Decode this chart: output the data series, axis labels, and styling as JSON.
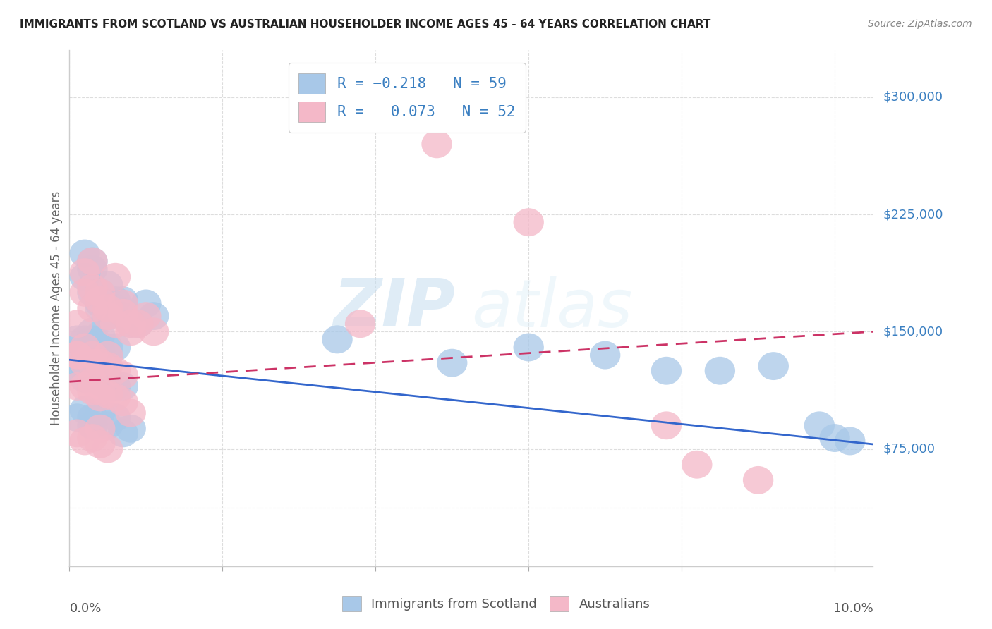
{
  "title": "IMMIGRANTS FROM SCOTLAND VS AUSTRALIAN HOUSEHOLDER INCOME AGES 45 - 64 YEARS CORRELATION CHART",
  "source": "Source: ZipAtlas.com",
  "ylabel": "Householder Income Ages 45 - 64 years",
  "ytick_labels": [
    "$75,000",
    "$150,000",
    "$225,000",
    "$300,000"
  ],
  "ytick_values": [
    75000,
    150000,
    225000,
    300000
  ],
  "ylim": [
    0,
    330000
  ],
  "xlim": [
    0.0,
    0.105
  ],
  "watermark_zip": "ZIP",
  "watermark_atlas": "atlas",
  "blue_color": "#a8c8e8",
  "pink_color": "#f4b8c8",
  "line_blue": "#3366cc",
  "line_pink": "#cc3366",
  "blue_line_x": [
    0.0,
    0.105
  ],
  "blue_line_y": [
    132000,
    78000
  ],
  "pink_line_x": [
    0.0,
    0.105
  ],
  "pink_line_y": [
    118000,
    150000
  ],
  "blue_x": [
    0.001,
    0.002,
    0.002,
    0.003,
    0.003,
    0.003,
    0.004,
    0.004,
    0.004,
    0.005,
    0.005,
    0.005,
    0.006,
    0.006,
    0.007,
    0.007,
    0.008,
    0.009,
    0.01,
    0.011,
    0.001,
    0.002,
    0.002,
    0.003,
    0.003,
    0.004,
    0.004,
    0.005,
    0.005,
    0.006,
    0.001,
    0.002,
    0.002,
    0.003,
    0.004,
    0.004,
    0.005,
    0.005,
    0.006,
    0.007,
    0.001,
    0.002,
    0.003,
    0.003,
    0.004,
    0.005,
    0.006,
    0.007,
    0.008,
    0.035,
    0.05,
    0.06,
    0.07,
    0.078,
    0.085,
    0.092,
    0.098,
    0.1,
    0.102
  ],
  "blue_y": [
    130000,
    200000,
    185000,
    190000,
    175000,
    195000,
    175000,
    168000,
    165000,
    165000,
    160000,
    180000,
    165000,
    170000,
    160000,
    170000,
    155000,
    155000,
    168000,
    160000,
    145000,
    145000,
    140000,
    145000,
    150000,
    138000,
    148000,
    140000,
    135000,
    140000,
    125000,
    128000,
    120000,
    125000,
    118000,
    125000,
    120000,
    115000,
    115000,
    115000,
    95000,
    100000,
    95000,
    90000,
    98000,
    90000,
    95000,
    85000,
    88000,
    145000,
    130000,
    140000,
    135000,
    125000,
    125000,
    128000,
    90000,
    82000,
    80000
  ],
  "pink_x": [
    0.001,
    0.001,
    0.002,
    0.002,
    0.003,
    0.003,
    0.003,
    0.004,
    0.004,
    0.005,
    0.005,
    0.006,
    0.006,
    0.007,
    0.007,
    0.008,
    0.008,
    0.009,
    0.01,
    0.011,
    0.001,
    0.002,
    0.002,
    0.003,
    0.003,
    0.004,
    0.005,
    0.005,
    0.006,
    0.007,
    0.001,
    0.002,
    0.003,
    0.003,
    0.004,
    0.004,
    0.005,
    0.006,
    0.007,
    0.008,
    0.001,
    0.002,
    0.003,
    0.004,
    0.004,
    0.005,
    0.038,
    0.048,
    0.06,
    0.078,
    0.082,
    0.09
  ],
  "pink_y": [
    135000,
    155000,
    188000,
    175000,
    178000,
    195000,
    165000,
    175000,
    170000,
    165000,
    160000,
    155000,
    185000,
    162000,
    168000,
    150000,
    155000,
    155000,
    160000,
    150000,
    135000,
    130000,
    140000,
    135000,
    130000,
    130000,
    128000,
    135000,
    125000,
    122000,
    115000,
    115000,
    112000,
    118000,
    108000,
    112000,
    110000,
    108000,
    105000,
    98000,
    85000,
    80000,
    82000,
    88000,
    78000,
    75000,
    155000,
    270000,
    220000,
    90000,
    65000,
    55000
  ]
}
